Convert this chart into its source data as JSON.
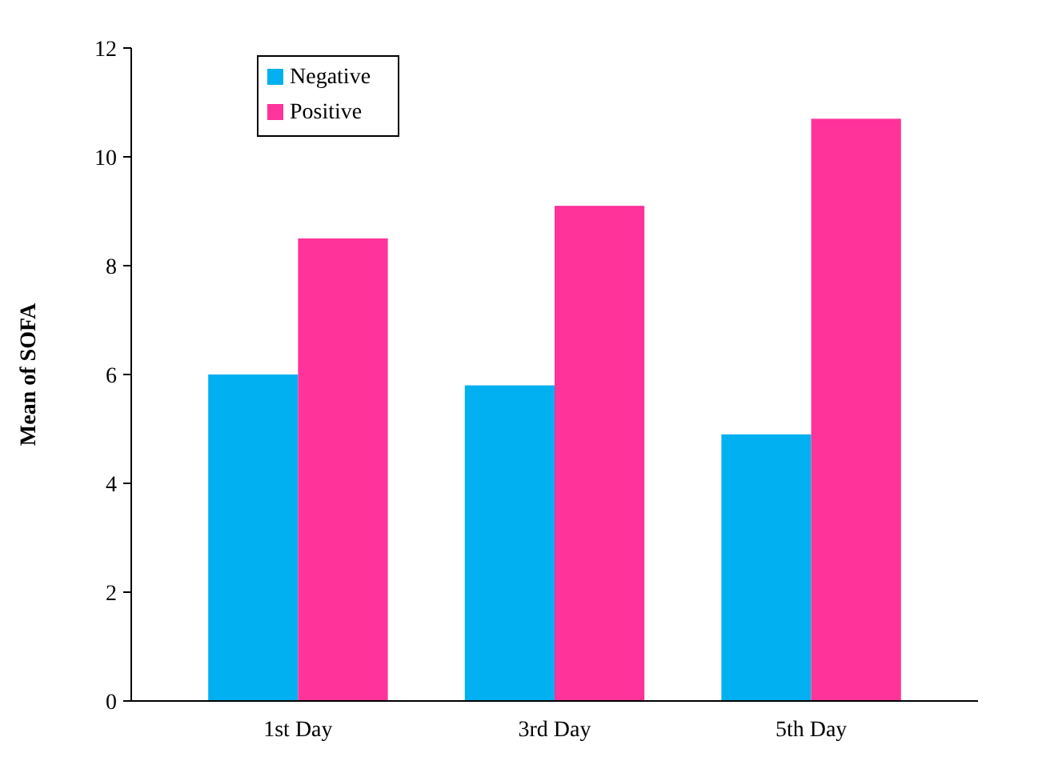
{
  "chart_data": {
    "type": "bar",
    "ylabel": "Mean of SOFA",
    "categories": [
      "1st Day",
      "3rd Day",
      "5th Day"
    ],
    "series": [
      {
        "name": "Negative",
        "color": "#00b0f0",
        "values": [
          6.0,
          5.8,
          4.9
        ]
      },
      {
        "name": "Positive",
        "color": "#ff3399",
        "values": [
          8.5,
          9.1,
          10.7
        ]
      }
    ],
    "ylim": [
      0,
      12
    ],
    "yticks": [
      0,
      2,
      4,
      6,
      8,
      10,
      12
    ],
    "legend": "top left",
    "grid": false
  }
}
